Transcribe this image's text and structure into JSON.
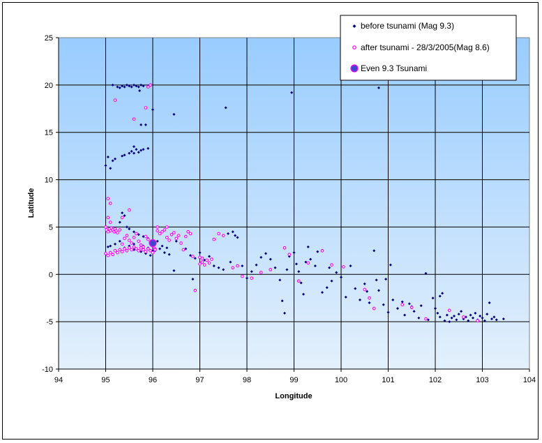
{
  "chart_data": {
    "type": "scatter",
    "title": "",
    "xlabel": "Longitude",
    "ylabel": "Latitude",
    "xlim": [
      94,
      104
    ],
    "ylim": [
      -10,
      25
    ],
    "x_ticks": [
      94,
      95,
      96,
      97,
      98,
      99,
      100,
      101,
      102,
      103,
      104
    ],
    "y_ticks": [
      -10,
      -5,
      0,
      5,
      10,
      15,
      20,
      25
    ],
    "grid": true,
    "legend_position": "top-right",
    "series": [
      {
        "name": "before tsunami (Mag 9.3)",
        "color": "#000080",
        "marker": "diamond",
        "points": [
          [
            95.25,
            19.8
          ],
          [
            95.3,
            19.7
          ],
          [
            95.35,
            19.9
          ],
          [
            95.4,
            19.8
          ],
          [
            95.45,
            20.0
          ],
          [
            95.5,
            19.9
          ],
          [
            95.55,
            19.8
          ],
          [
            95.6,
            20.0
          ],
          [
            95.65,
            19.9
          ],
          [
            95.7,
            19.8
          ],
          [
            95.75,
            20.0
          ],
          [
            95.8,
            19.9
          ],
          [
            95.72,
            19.4
          ],
          [
            95.15,
            20.0
          ],
          [
            95.9,
            19.9
          ],
          [
            96.0,
            17.4
          ],
          [
            96.45,
            16.9
          ],
          [
            95.75,
            15.8
          ],
          [
            95.85,
            15.8
          ],
          [
            97.55,
            17.6
          ],
          [
            98.95,
            19.2
          ],
          [
            100.8,
            19.7
          ],
          [
            95.35,
            12.5
          ],
          [
            95.4,
            12.6
          ],
          [
            95.5,
            12.8
          ],
          [
            95.55,
            13.0
          ],
          [
            95.6,
            13.5
          ],
          [
            95.65,
            13.2
          ],
          [
            95.7,
            12.9
          ],
          [
            95.8,
            13.2
          ],
          [
            95.9,
            13.3
          ],
          [
            95.6,
            12.8
          ],
          [
            95.75,
            13.1
          ],
          [
            95.05,
            12.4
          ],
          [
            95.1,
            11.2
          ],
          [
            95.0,
            11.5
          ],
          [
            95.15,
            12.0
          ],
          [
            95.2,
            12.2
          ],
          [
            95.35,
            6.5
          ],
          [
            95.4,
            6.2
          ],
          [
            95.3,
            5.5
          ],
          [
            95.45,
            5.0
          ],
          [
            95.5,
            4.8
          ],
          [
            95.6,
            4.5
          ],
          [
            95.7,
            4.2
          ],
          [
            95.8,
            4.0
          ],
          [
            95.9,
            3.8
          ],
          [
            96.1,
            3.5
          ],
          [
            96.2,
            3.0
          ],
          [
            96.3,
            2.8
          ],
          [
            95.6,
            3.2
          ],
          [
            95.7,
            3.5
          ],
          [
            95.8,
            3.0
          ],
          [
            95.9,
            2.8
          ],
          [
            96.0,
            2.5
          ],
          [
            95.5,
            3.0
          ],
          [
            95.4,
            2.8
          ],
          [
            95.3,
            3.5
          ],
          [
            95.2,
            3.2
          ],
          [
            95.1,
            3.0
          ],
          [
            95.05,
            2.9
          ],
          [
            95.6,
            2.6
          ],
          [
            95.75,
            2.4
          ],
          [
            95.85,
            2.2
          ],
          [
            95.95,
            2.0
          ],
          [
            96.05,
            2.5
          ],
          [
            96.15,
            2.7
          ],
          [
            96.25,
            2.3
          ],
          [
            96.35,
            2.1
          ],
          [
            96.45,
            0.4
          ],
          [
            96.5,
            3.5
          ],
          [
            96.6,
            3.3
          ],
          [
            96.7,
            2.7
          ],
          [
            96.8,
            2.0
          ],
          [
            96.9,
            1.7
          ],
          [
            97.0,
            2.3
          ],
          [
            96.85,
            -0.5
          ],
          [
            97.1,
            1.5
          ],
          [
            97.2,
            1.9
          ],
          [
            97.3,
            0.9
          ],
          [
            97.4,
            0.7
          ],
          [
            97.5,
            0.5
          ],
          [
            97.6,
            4.3
          ],
          [
            97.7,
            4.5
          ],
          [
            97.75,
            4.1
          ],
          [
            97.8,
            3.9
          ],
          [
            97.65,
            1.3
          ],
          [
            97.9,
            0.9
          ],
          [
            98.0,
            -0.4
          ],
          [
            98.1,
            0.3
          ],
          [
            98.2,
            1.0
          ],
          [
            98.3,
            1.8
          ],
          [
            98.4,
            2.2
          ],
          [
            98.5,
            1.6
          ],
          [
            98.6,
            0.7
          ],
          [
            98.7,
            -0.6
          ],
          [
            98.75,
            -2.8
          ],
          [
            98.8,
            -4.1
          ],
          [
            98.85,
            0.5
          ],
          [
            98.9,
            1.9
          ],
          [
            99.0,
            2.3
          ],
          [
            99.05,
            1.1
          ],
          [
            99.1,
            0.3
          ],
          [
            99.15,
            -0.9
          ],
          [
            99.2,
            -2.1
          ],
          [
            99.3,
            2.9
          ],
          [
            99.35,
            1.6
          ],
          [
            99.45,
            0.9
          ],
          [
            99.5,
            2.4
          ],
          [
            99.6,
            -1.9
          ],
          [
            99.7,
            -1.4
          ],
          [
            99.75,
            0.7
          ],
          [
            99.8,
            -0.7
          ],
          [
            99.9,
            0.2
          ],
          [
            100.0,
            -0.3
          ],
          [
            100.1,
            -2.4
          ],
          [
            100.2,
            0.9
          ],
          [
            100.3,
            -1.5
          ],
          [
            100.4,
            -2.7
          ],
          [
            100.5,
            -1.0
          ],
          [
            100.55,
            -1.8
          ],
          [
            100.6,
            -3.0
          ],
          [
            100.7,
            2.5
          ],
          [
            100.75,
            -0.6
          ],
          [
            100.8,
            -1.7
          ],
          [
            100.9,
            -3.2
          ],
          [
            101.0,
            -4.0
          ],
          [
            101.05,
            1.0
          ],
          [
            101.1,
            -2.7
          ],
          [
            101.2,
            -3.6
          ],
          [
            101.3,
            -2.9
          ],
          [
            101.35,
            -4.3
          ],
          [
            101.45,
            -3.1
          ],
          [
            101.55,
            -3.9
          ],
          [
            101.65,
            -4.6
          ],
          [
            101.7,
            -3.3
          ],
          [
            101.8,
            0.1
          ],
          [
            101.85,
            -4.8
          ],
          [
            101.95,
            -2.5
          ],
          [
            102.0,
            -3.6
          ],
          [
            102.05,
            -4.1
          ],
          [
            102.1,
            -4.5
          ],
          [
            102.15,
            -2.0
          ],
          [
            102.2,
            -4.9
          ],
          [
            102.25,
            -4.3
          ],
          [
            102.3,
            -5.0
          ],
          [
            102.35,
            -4.6
          ],
          [
            102.4,
            -4.4
          ],
          [
            102.45,
            -4.8
          ],
          [
            102.5,
            -4.2
          ],
          [
            102.55,
            -3.9
          ],
          [
            102.6,
            -4.7
          ],
          [
            102.65,
            -4.5
          ],
          [
            102.7,
            -4.9
          ],
          [
            102.75,
            -4.3
          ],
          [
            102.8,
            -4.6
          ],
          [
            102.85,
            -4.1
          ],
          [
            102.9,
            -4.8
          ],
          [
            102.95,
            -4.4
          ],
          [
            103.0,
            -4.6
          ],
          [
            103.05,
            -4.9
          ],
          [
            103.1,
            -4.2
          ],
          [
            103.15,
            -3.0
          ],
          [
            103.2,
            -4.7
          ],
          [
            103.25,
            -4.5
          ],
          [
            103.3,
            -4.8
          ],
          [
            103.45,
            -4.7
          ],
          [
            102.1,
            -2.3
          ],
          [
            101.5,
            -3.4
          ],
          [
            100.95,
            -0.5
          ],
          [
            99.25,
            1.3
          ]
        ]
      },
      {
        "name": "after tsunami - 28/3/2005(Mag 8.6)",
        "color": "#ff00ff",
        "marker": "circle",
        "points": [
          [
            95.05,
            8.0
          ],
          [
            95.1,
            7.5
          ],
          [
            95.05,
            6.0
          ],
          [
            95.1,
            5.5
          ],
          [
            95.0,
            5.0
          ],
          [
            95.02,
            4.7
          ],
          [
            95.05,
            4.5
          ],
          [
            95.08,
            4.8
          ],
          [
            95.1,
            4.6
          ],
          [
            95.12,
            4.9
          ],
          [
            95.15,
            4.7
          ],
          [
            95.18,
            4.5
          ],
          [
            95.2,
            4.8
          ],
          [
            95.22,
            4.6
          ],
          [
            95.25,
            4.4
          ],
          [
            95.3,
            4.7
          ],
          [
            95.35,
            3.2
          ],
          [
            95.4,
            3.8
          ],
          [
            95.45,
            4.1
          ],
          [
            95.5,
            3.6
          ],
          [
            95.55,
            3.3
          ],
          [
            95.6,
            3.9
          ],
          [
            95.65,
            4.3
          ],
          [
            95.7,
            3.5
          ],
          [
            95.75,
            3.1
          ],
          [
            95.8,
            2.9
          ],
          [
            95.85,
            4.0
          ],
          [
            95.9,
            3.7
          ],
          [
            95.95,
            3.4
          ],
          [
            96.0,
            3.0
          ],
          [
            96.05,
            2.7
          ],
          [
            96.1,
            4.6
          ],
          [
            96.15,
            4.3
          ],
          [
            96.2,
            4.5
          ],
          [
            96.25,
            4.7
          ],
          [
            96.3,
            3.9
          ],
          [
            96.35,
            3.6
          ],
          [
            96.4,
            4.2
          ],
          [
            96.45,
            4.4
          ],
          [
            96.5,
            3.8
          ],
          [
            96.55,
            4.1
          ],
          [
            96.6,
            3.3
          ],
          [
            96.65,
            2.6
          ],
          [
            96.7,
            4.0
          ],
          [
            96.75,
            4.5
          ],
          [
            96.8,
            4.3
          ],
          [
            96.85,
            1.9
          ],
          [
            95.0,
            2.2
          ],
          [
            95.05,
            2.0
          ],
          [
            95.1,
            2.3
          ],
          [
            95.15,
            2.1
          ],
          [
            95.2,
            2.5
          ],
          [
            95.25,
            2.3
          ],
          [
            95.3,
            2.6
          ],
          [
            95.35,
            2.4
          ],
          [
            95.4,
            2.7
          ],
          [
            95.45,
            2.5
          ],
          [
            95.5,
            2.8
          ],
          [
            95.55,
            2.6
          ],
          [
            95.6,
            2.9
          ],
          [
            95.65,
            2.7
          ],
          [
            95.7,
            2.5
          ],
          [
            95.75,
            2.8
          ],
          [
            95.8,
            2.6
          ],
          [
            95.85,
            2.4
          ],
          [
            95.9,
            2.7
          ],
          [
            95.95,
            2.5
          ],
          [
            96.0,
            2.3
          ],
          [
            96.05,
            2.6
          ],
          [
            95.2,
            18.4
          ],
          [
            95.6,
            16.4
          ],
          [
            95.85,
            17.6
          ],
          [
            95.95,
            20.0
          ],
          [
            95.9,
            19.8
          ],
          [
            95.5,
            6.8
          ],
          [
            95.35,
            6.0
          ],
          [
            96.3,
            5.0
          ],
          [
            96.1,
            5.0
          ],
          [
            97.0,
            1.8
          ],
          [
            97.05,
            1.3
          ],
          [
            97.1,
            1.0
          ],
          [
            97.15,
            1.5
          ],
          [
            97.2,
            1.2
          ],
          [
            97.25,
            1.6
          ],
          [
            97.0,
            1.1
          ],
          [
            97.05,
            1.7
          ],
          [
            96.9,
            -1.7
          ],
          [
            97.3,
            3.7
          ],
          [
            97.4,
            4.3
          ],
          [
            97.5,
            4.1
          ],
          [
            97.7,
            0.7
          ],
          [
            97.8,
            0.9
          ],
          [
            97.9,
            -0.2
          ],
          [
            98.1,
            -0.4
          ],
          [
            98.3,
            0.2
          ],
          [
            98.5,
            0.5
          ],
          [
            98.8,
            2.8
          ],
          [
            98.9,
            2.1
          ],
          [
            99.1,
            -0.7
          ],
          [
            99.3,
            1.2
          ],
          [
            99.6,
            2.5
          ],
          [
            99.8,
            1.0
          ],
          [
            100.05,
            0.8
          ],
          [
            100.5,
            -1.6
          ],
          [
            100.6,
            -2.5
          ],
          [
            100.7,
            -3.6
          ],
          [
            101.5,
            -3.5
          ],
          [
            101.8,
            -4.7
          ],
          [
            102.3,
            -3.8
          ],
          [
            102.6,
            -4.5
          ],
          [
            102.9,
            -4.9
          ],
          [
            101.3,
            -3.2
          ]
        ]
      },
      {
        "name": "Even 9.3 Tsunami",
        "color": "#3f48cc",
        "marker": "big-circle",
        "points": [
          [
            96.0,
            3.3
          ]
        ]
      }
    ]
  },
  "legend": {
    "items": [
      {
        "label": "before tsunami (Mag 9.3)"
      },
      {
        "label": "after tsunami - 28/3/2005(Mag 8.6)"
      },
      {
        "label": "Even 9.3 Tsunami"
      }
    ]
  }
}
